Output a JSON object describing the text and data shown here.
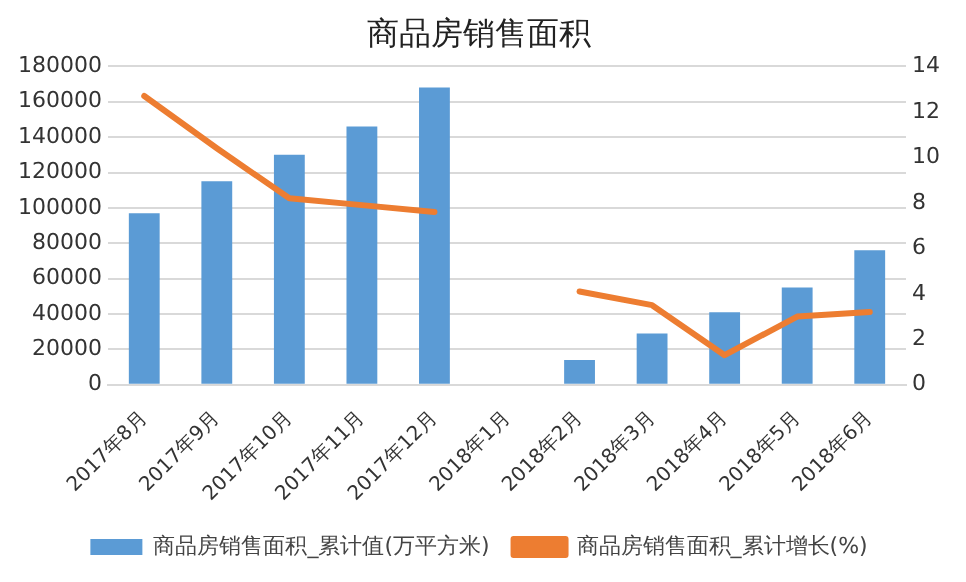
{
  "chart_data": {
    "type": "bar",
    "title": "商品房销售面积",
    "categories": [
      "2017年8月",
      "2017年9月",
      "2017年10月",
      "2017年11月",
      "2017年12月",
      "2018年1月",
      "2018年2月",
      "2018年3月",
      "2018年4月",
      "2018年5月",
      "2018年6月"
    ],
    "series": [
      {
        "name": "商品房销售面积_累计值(万平方米)",
        "color": "#5b9bd5",
        "values": [
          97000,
          115000,
          130000,
          146000,
          168000,
          null,
          14000,
          29000,
          41000,
          55000,
          76000
        ]
      },
      {
        "name": "商品房销售面积_累计增长(%)",
        "type": "line",
        "axis": "y2",
        "color": "#ed7d31",
        "values": [
          12.7,
          10.4,
          8.2,
          7.9,
          7.6,
          null,
          4.1,
          3.5,
          1.3,
          3.0,
          3.2
        ]
      }
    ],
    "ylim": [
      0,
      180000
    ],
    "yticks": [
      0,
      20000,
      40000,
      60000,
      80000,
      100000,
      120000,
      140000,
      160000,
      180000
    ],
    "y2lim": [
      0,
      14
    ],
    "y2ticks": [
      0,
      2,
      4,
      6,
      8,
      10,
      12,
      14
    ],
    "grid": "y",
    "legend": "bottom",
    "marker": "none",
    "line_style": "solid"
  }
}
